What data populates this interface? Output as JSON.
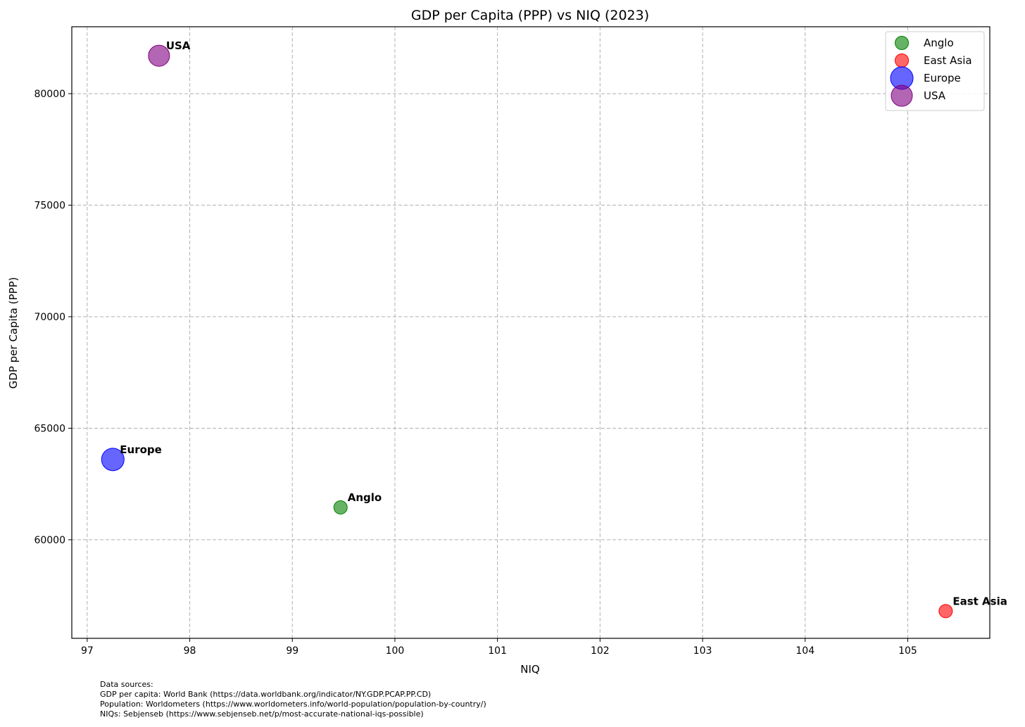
{
  "chart_data": {
    "type": "scatter",
    "title": "GDP per Capita (PPP) vs NIQ (2023)",
    "xlabel": "NIQ",
    "ylabel": "GDP per Capita (PPP)",
    "xlim": [
      96.85,
      105.8
    ],
    "ylim": [
      55580,
      83000
    ],
    "x_ticks": [
      97,
      98,
      99,
      100,
      101,
      102,
      103,
      104,
      105
    ],
    "y_ticks": [
      60000,
      65000,
      70000,
      75000,
      80000
    ],
    "grid": true,
    "grid_style": "dashed",
    "legend_position": "top-right",
    "series": [
      {
        "name": "Anglo",
        "label": "Anglo",
        "x": 99.47,
        "y": 61450,
        "color": "#008000",
        "size": "small"
      },
      {
        "name": "East Asia",
        "label": "East Asia",
        "x": 105.37,
        "y": 56800,
        "color": "#ff0000",
        "size": "small"
      },
      {
        "name": "Europe",
        "label": "Europe",
        "x": 97.25,
        "y": 63600,
        "color": "#0000ff",
        "size": "large"
      },
      {
        "name": "USA",
        "label": "USA",
        "x": 97.7,
        "y": 81700,
        "color": "#800080",
        "size": "medium"
      }
    ]
  },
  "footer": {
    "lines": [
      "Data sources:",
      "GDP per capita: World Bank (https://data.worldbank.org/indicator/NY.GDP.PCAP.PP.CD)",
      "Population: Worldometers (https://www.worldometers.info/world-population/population-by-country/)",
      "NIQs: Sebjenseb (https://www.sebjenseb.net/p/most-accurate-national-iqs-possible)"
    ]
  }
}
